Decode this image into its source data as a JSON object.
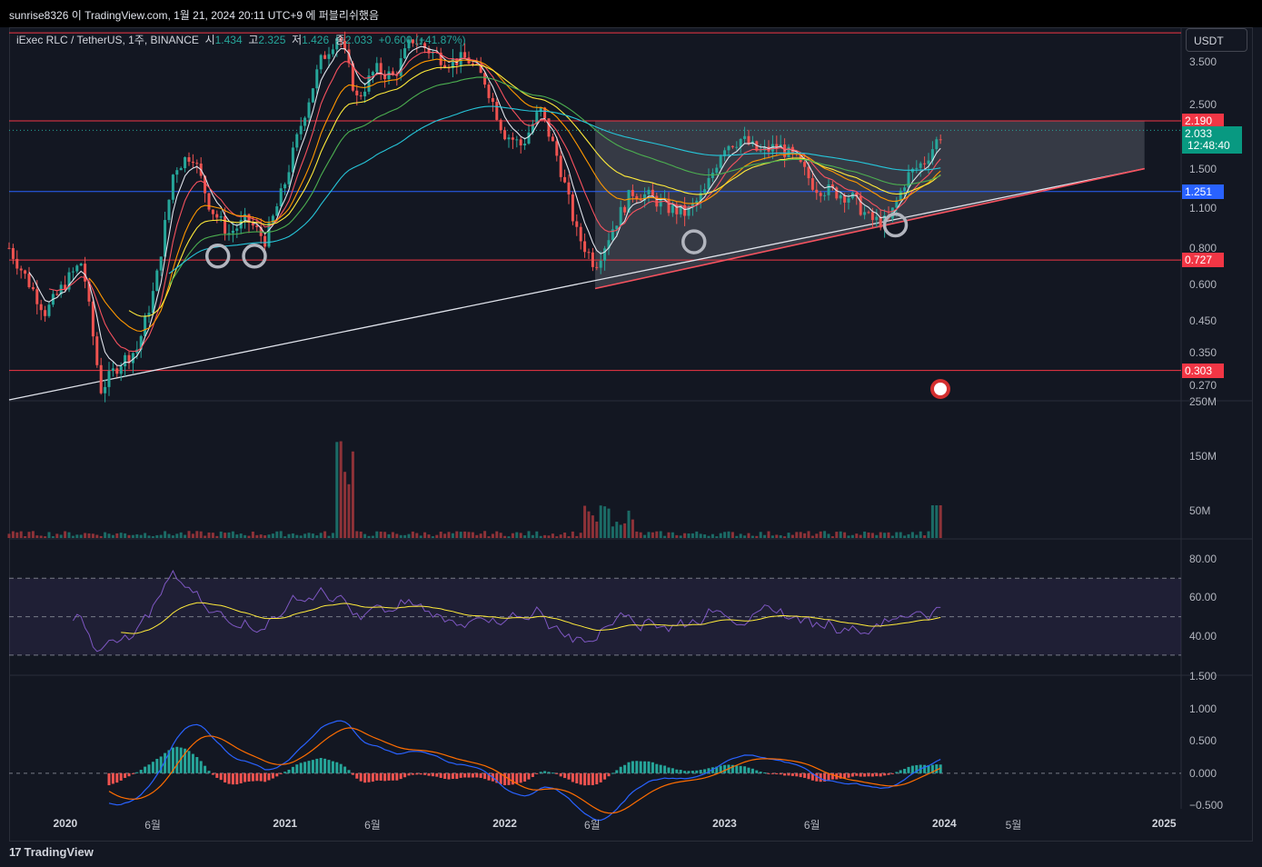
{
  "header": {
    "attribution": "sunrise8326 이 TradingView.com, 1월 21, 2024 20:11 UTC+9 에 퍼블리쉬했음"
  },
  "symbol": {
    "name": "iExec RLC / TetherUS, 1주, BINANCE",
    "open_label": "시",
    "open": "1.434",
    "high_label": "고",
    "high": "2.325",
    "low_label": "저",
    "low": "1.426",
    "close_label": "종",
    "close": "2.033",
    "change": "+0.600 (+41.87%)"
  },
  "currency": "USDT",
  "brand": "TradingView",
  "colors": {
    "background": "#131722",
    "up": "#26a69a",
    "down": "#ef5350",
    "support_red": "#f23645",
    "blue_line": "#2962ff",
    "triangle_fill": "#787b86",
    "rsi_band": "#7e57c2",
    "rsi_line": "#7e57c2",
    "rsi_ma": "#ffeb3b",
    "macd_line": "#2962ff",
    "signal_line": "#ff6d00"
  },
  "chart_data": [
    {
      "type": "line",
      "panel": "price",
      "scale": "log",
      "ylim": [
        0.24,
        4.6
      ],
      "price_axis_ticks": [
        "3.500",
        "2.500",
        "1.500",
        "1.100",
        "0.800",
        "0.600",
        "0.450",
        "0.350",
        "0.270"
      ],
      "price_tags": [
        {
          "value": "2.190",
          "color": "#f23645"
        },
        {
          "value": "2.033",
          "color": "#089981",
          "countdown": "12:48:40"
        },
        {
          "value": "1.251",
          "color": "#2962ff"
        },
        {
          "value": "0.727",
          "color": "#f23645"
        },
        {
          "value": "0.303",
          "color": "#f23645"
        }
      ],
      "horizontal_levels": [
        4.4,
        2.19,
        1.251,
        0.727,
        0.303
      ],
      "trendline_lower": [
        {
          "x": "2019-10",
          "y": 0.24
        },
        {
          "x": "2024-12",
          "y": 1.5
        }
      ],
      "triangle": [
        {
          "x": "2022-06",
          "y": 0.58
        },
        {
          "x": "2022-06",
          "y": 2.19
        },
        {
          "x": "2024-12",
          "y": 2.19
        },
        {
          "x": "2024-12",
          "y": 1.5
        }
      ],
      "x_ticks": [
        "2020",
        "6월",
        "2021",
        "6월",
        "2022",
        "6월",
        "2023",
        "6월",
        "2024",
        "5월",
        "2025"
      ],
      "series": [
        {
          "values_x": [
            "2019-10",
            "2019-11",
            "2019-12",
            "2020-01",
            "2020-02",
            "2020-03",
            "2020-04",
            "2020-05",
            "2020-06",
            "2020-07",
            "2020-08",
            "2020-09",
            "2020-10",
            "2020-11",
            "2020-12",
            "2021-01",
            "2021-02",
            "2021-03",
            "2021-04",
            "2021-05",
            "2021-06",
            "2021-07",
            "2021-08",
            "2021-09",
            "2021-10",
            "2021-11",
            "2021-12",
            "2022-01",
            "2022-02",
            "2022-03",
            "2022-04",
            "2022-05",
            "2022-06",
            "2022-07",
            "2022-08",
            "2022-09",
            "2022-10",
            "2022-11",
            "2022-12",
            "2023-01",
            "2023-02",
            "2023-03",
            "2023-04",
            "2023-05",
            "2023-06",
            "2023-07",
            "2023-08",
            "2023-09",
            "2023-10",
            "2023-11",
            "2023-12",
            "2024-01"
          ],
          "values_y": [
            0.8,
            0.62,
            0.48,
            0.6,
            0.72,
            0.26,
            0.32,
            0.36,
            0.6,
            1.5,
            1.7,
            1.1,
            0.9,
            1.0,
            0.85,
            1.3,
            2.2,
            3.5,
            4.4,
            2.6,
            3.3,
            3.1,
            4.2,
            3.8,
            3.5,
            3.6,
            3.0,
            2.0,
            1.8,
            2.4,
            1.6,
            0.9,
            0.7,
            0.95,
            1.25,
            1.2,
            1.1,
            1.05,
            1.25,
            1.8,
            1.9,
            1.7,
            1.8,
            1.6,
            1.3,
            1.25,
            1.2,
            1.0,
            0.98,
            1.4,
            1.6,
            2.03
          ]
        }
      ]
    },
    {
      "type": "bar",
      "panel": "volume",
      "y_ticks": [
        "250M",
        "150M",
        "50M"
      ],
      "ylim": [
        0,
        250
      ]
    },
    {
      "type": "line",
      "panel": "rsi",
      "y_ticks": [
        "80.00",
        "60.00",
        "40.00"
      ],
      "ylim": [
        20,
        90
      ],
      "band": [
        30,
        70
      ],
      "midline": 50
    },
    {
      "type": "line",
      "panel": "macd",
      "y_ticks": [
        "1.500",
        "1.000",
        "0.500",
        "0.000",
        "−0.500"
      ],
      "ylim": [
        -0.55,
        1.5
      ]
    }
  ]
}
